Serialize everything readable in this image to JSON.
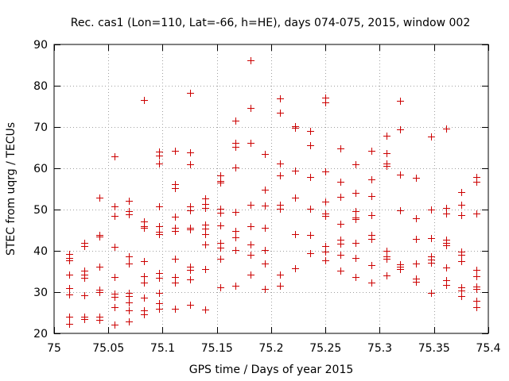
{
  "chart_data": {
    "type": "scatter",
    "title": "Rec. cas1 (Lon=110, Lat=-66, h=HE), days 074-075, 2015, window 002",
    "xlabel": "GPS time / Days of year 2015",
    "ylabel": "STEC from uqrg / TECUs",
    "xlim": [
      75,
      75.4
    ],
    "ylim": [
      20,
      90
    ],
    "x_ticks": [
      75,
      75.05,
      75.1,
      75.15,
      75.2,
      75.25,
      75.3,
      75.35,
      75.4
    ],
    "x_tick_labels": [
      "75",
      "75.05",
      "75.1",
      "75.15",
      "75.2",
      "75.25",
      "75.3",
      "75.35",
      "75.4"
    ],
    "y_ticks": [
      20,
      30,
      40,
      50,
      60,
      70,
      80,
      90
    ],
    "y_tick_labels": [
      "20",
      "30",
      "40",
      "50",
      "60",
      "70",
      "80",
      "90"
    ],
    "grid": true,
    "marker": "+",
    "marker_color": "#cc0000",
    "series": [
      {
        "name": "STEC",
        "points": [
          [
            75.014,
            39.2
          ],
          [
            75.014,
            38.3
          ],
          [
            75.014,
            37.6
          ],
          [
            75.014,
            34.3
          ],
          [
            75.014,
            31.0
          ],
          [
            75.014,
            29.4
          ],
          [
            75.014,
            24.1
          ],
          [
            75.014,
            22.3
          ],
          [
            75.028,
            41.9
          ],
          [
            75.028,
            41.1
          ],
          [
            75.028,
            35.1
          ],
          [
            75.028,
            34.2
          ],
          [
            75.028,
            33.5
          ],
          [
            75.028,
            29.3
          ],
          [
            75.028,
            24.1
          ],
          [
            75.028,
            23.5
          ],
          [
            75.042,
            52.8
          ],
          [
            75.042,
            43.8
          ],
          [
            75.042,
            43.4
          ],
          [
            75.042,
            36.1
          ],
          [
            75.042,
            30.5
          ],
          [
            75.042,
            30.0
          ],
          [
            75.042,
            24.0
          ],
          [
            75.042,
            23.3
          ],
          [
            75.056,
            62.9
          ],
          [
            75.056,
            50.7
          ],
          [
            75.056,
            48.5
          ],
          [
            75.056,
            40.9
          ],
          [
            75.056,
            33.7
          ],
          [
            75.056,
            29.7
          ],
          [
            75.056,
            28.8
          ],
          [
            75.056,
            26.4
          ],
          [
            75.056,
            22.2
          ],
          [
            75.069,
            52.2
          ],
          [
            75.069,
            49.6
          ],
          [
            75.069,
            48.9
          ],
          [
            75.069,
            38.7
          ],
          [
            75.069,
            37.0
          ],
          [
            75.069,
            29.9
          ],
          [
            75.069,
            29.0
          ],
          [
            75.069,
            27.5
          ],
          [
            75.069,
            25.5
          ],
          [
            75.069,
            22.9
          ],
          [
            75.083,
            76.5
          ],
          [
            75.083,
            47.2
          ],
          [
            75.083,
            45.9
          ],
          [
            75.083,
            45.6
          ],
          [
            75.083,
            37.5
          ],
          [
            75.083,
            33.9
          ],
          [
            75.083,
            32.3
          ],
          [
            75.083,
            28.6
          ],
          [
            75.083,
            25.5
          ],
          [
            75.083,
            24.7
          ],
          [
            75.097,
            64.0
          ],
          [
            75.097,
            63.1
          ],
          [
            75.097,
            61.1
          ],
          [
            75.097,
            50.8
          ],
          [
            75.097,
            46.0
          ],
          [
            75.097,
            44.6
          ],
          [
            75.097,
            44.0
          ],
          [
            75.097,
            34.7
          ],
          [
            75.097,
            33.5
          ],
          [
            75.097,
            29.8
          ],
          [
            75.097,
            27.3
          ],
          [
            75.097,
            26.0
          ],
          [
            75.111,
            64.2
          ],
          [
            75.111,
            56.1
          ],
          [
            75.111,
            55.1
          ],
          [
            75.111,
            48.3
          ],
          [
            75.111,
            45.5
          ],
          [
            75.111,
            44.9
          ],
          [
            75.111,
            38.1
          ],
          [
            75.111,
            33.6
          ],
          [
            75.111,
            32.3
          ],
          [
            75.111,
            26.0
          ],
          [
            75.125,
            78.2
          ],
          [
            75.125,
            63.9
          ],
          [
            75.125,
            61.0
          ],
          [
            75.125,
            50.8
          ],
          [
            75.125,
            49.8
          ],
          [
            75.125,
            45.6
          ],
          [
            75.125,
            45.1
          ],
          [
            75.125,
            36.2
          ],
          [
            75.125,
            35.4
          ],
          [
            75.125,
            33.1
          ],
          [
            75.125,
            27.0
          ],
          [
            75.139,
            52.7
          ],
          [
            75.139,
            51.3
          ],
          [
            75.139,
            50.3
          ],
          [
            75.139,
            46.3
          ],
          [
            75.139,
            45.3
          ],
          [
            75.139,
            44.0
          ],
          [
            75.139,
            41.6
          ],
          [
            75.139,
            35.5
          ],
          [
            75.139,
            25.7
          ],
          [
            75.153,
            58.2
          ],
          [
            75.153,
            57.0
          ],
          [
            75.153,
            56.6
          ],
          [
            75.153,
            50.1
          ],
          [
            75.153,
            49.2
          ],
          [
            75.153,
            46.1
          ],
          [
            75.153,
            42.0
          ],
          [
            75.153,
            40.7
          ],
          [
            75.153,
            38.1
          ],
          [
            75.153,
            31.2
          ],
          [
            75.167,
            71.6
          ],
          [
            75.167,
            66.1
          ],
          [
            75.167,
            65.2
          ],
          [
            75.167,
            60.1
          ],
          [
            75.167,
            49.4
          ],
          [
            75.167,
            44.8
          ],
          [
            75.167,
            43.3
          ],
          [
            75.167,
            40.2
          ],
          [
            75.167,
            31.5
          ],
          [
            75.181,
            86.2
          ],
          [
            75.181,
            74.7
          ],
          [
            75.181,
            66.1
          ],
          [
            75.181,
            51.2
          ],
          [
            75.181,
            46.0
          ],
          [
            75.181,
            41.6
          ],
          [
            75.181,
            39.0
          ],
          [
            75.181,
            34.3
          ],
          [
            75.194,
            63.5
          ],
          [
            75.194,
            54.8
          ],
          [
            75.194,
            51.0
          ],
          [
            75.194,
            45.5
          ],
          [
            75.194,
            40.2
          ],
          [
            75.194,
            36.9
          ],
          [
            75.194,
            30.8
          ],
          [
            75.208,
            77.0
          ],
          [
            75.208,
            73.4
          ],
          [
            75.208,
            61.1
          ],
          [
            75.208,
            58.3
          ],
          [
            75.208,
            51.1
          ],
          [
            75.208,
            50.1
          ],
          [
            75.208,
            34.3
          ],
          [
            75.208,
            31.5
          ],
          [
            75.222,
            70.1
          ],
          [
            75.222,
            69.8
          ],
          [
            75.222,
            59.4
          ],
          [
            75.222,
            52.9
          ],
          [
            75.222,
            44.0
          ],
          [
            75.222,
            35.8
          ],
          [
            75.236,
            69.1
          ],
          [
            75.236,
            65.6
          ],
          [
            75.236,
            57.9
          ],
          [
            75.236,
            50.2
          ],
          [
            75.236,
            43.8
          ],
          [
            75.236,
            39.4
          ],
          [
            75.25,
            77.1
          ],
          [
            75.25,
            75.9
          ],
          [
            75.25,
            59.2
          ],
          [
            75.25,
            52.0
          ],
          [
            75.25,
            49.0
          ],
          [
            75.25,
            48.4
          ],
          [
            75.25,
            41.2
          ],
          [
            75.25,
            39.9
          ],
          [
            75.25,
            37.6
          ],
          [
            75.264,
            64.9
          ],
          [
            75.264,
            56.8
          ],
          [
            75.264,
            53.0
          ],
          [
            75.264,
            46.6
          ],
          [
            75.264,
            42.6
          ],
          [
            75.264,
            41.7
          ],
          [
            75.264,
            39.1
          ],
          [
            75.264,
            35.1
          ],
          [
            75.278,
            60.9
          ],
          [
            75.278,
            54.1
          ],
          [
            75.278,
            49.7
          ],
          [
            75.278,
            48.0
          ],
          [
            75.278,
            47.6
          ],
          [
            75.278,
            41.9
          ],
          [
            75.278,
            38.3
          ],
          [
            75.278,
            33.6
          ],
          [
            75.292,
            64.3
          ],
          [
            75.292,
            57.4
          ],
          [
            75.292,
            53.3
          ],
          [
            75.292,
            48.6
          ],
          [
            75.292,
            43.8
          ],
          [
            75.292,
            42.8
          ],
          [
            75.292,
            36.5
          ],
          [
            75.292,
            32.4
          ],
          [
            75.306,
            67.9
          ],
          [
            75.306,
            63.7
          ],
          [
            75.306,
            61.2
          ],
          [
            75.306,
            60.6
          ],
          [
            75.306,
            40.0
          ],
          [
            75.306,
            38.6
          ],
          [
            75.306,
            38.1
          ],
          [
            75.306,
            34.0
          ],
          [
            75.319,
            76.3
          ],
          [
            75.319,
            69.4
          ],
          [
            75.319,
            58.5
          ],
          [
            75.319,
            49.8
          ],
          [
            75.319,
            36.7
          ],
          [
            75.319,
            36.1
          ],
          [
            75.319,
            35.6
          ],
          [
            75.333,
            57.7
          ],
          [
            75.333,
            47.9
          ],
          [
            75.333,
            42.8
          ],
          [
            75.333,
            36.9
          ],
          [
            75.333,
            33.2
          ],
          [
            75.333,
            32.5
          ],
          [
            75.347,
            67.7
          ],
          [
            75.347,
            50.0
          ],
          [
            75.347,
            43.0
          ],
          [
            75.347,
            38.6
          ],
          [
            75.347,
            37.9
          ],
          [
            75.347,
            37.1
          ],
          [
            75.347,
            29.9
          ],
          [
            75.361,
            69.7
          ],
          [
            75.361,
            50.3
          ],
          [
            75.361,
            49.0
          ],
          [
            75.361,
            42.6
          ],
          [
            75.361,
            41.9
          ],
          [
            75.361,
            41.3
          ],
          [
            75.361,
            36.0
          ],
          [
            75.361,
            32.9
          ],
          [
            75.361,
            31.8
          ],
          [
            75.375,
            54.2
          ],
          [
            75.375,
            51.2
          ],
          [
            75.375,
            48.6
          ],
          [
            75.375,
            39.8
          ],
          [
            75.375,
            39.1
          ],
          [
            75.375,
            37.5
          ],
          [
            75.375,
            31.2
          ],
          [
            75.375,
            30.4
          ],
          [
            75.375,
            29.0
          ],
          [
            75.389,
            57.9
          ],
          [
            75.389,
            56.7
          ],
          [
            75.389,
            49.1
          ],
          [
            75.389,
            35.3
          ],
          [
            75.389,
            33.8
          ],
          [
            75.389,
            31.4
          ],
          [
            75.389,
            30.8
          ],
          [
            75.389,
            27.9
          ],
          [
            75.389,
            26.3
          ]
        ]
      }
    ]
  }
}
